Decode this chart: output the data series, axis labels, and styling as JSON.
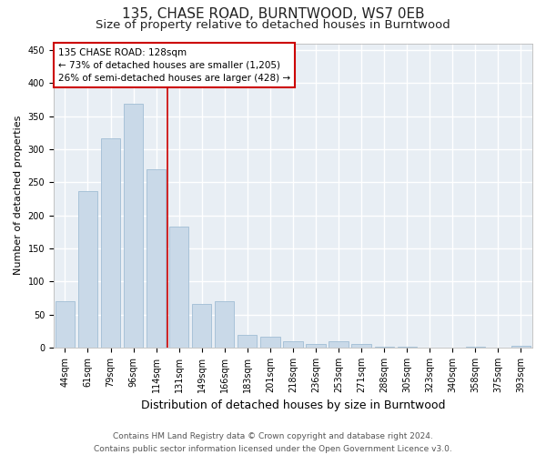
{
  "title": "135, CHASE ROAD, BURNTWOOD, WS7 0EB",
  "subtitle": "Size of property relative to detached houses in Burntwood",
  "xlabel": "Distribution of detached houses by size in Burntwood",
  "ylabel": "Number of detached properties",
  "categories": [
    "44sqm",
    "61sqm",
    "79sqm",
    "96sqm",
    "114sqm",
    "131sqm",
    "149sqm",
    "166sqm",
    "183sqm",
    "201sqm",
    "218sqm",
    "236sqm",
    "253sqm",
    "271sqm",
    "288sqm",
    "305sqm",
    "323sqm",
    "340sqm",
    "358sqm",
    "375sqm",
    "393sqm"
  ],
  "values": [
    70,
    236,
    316,
    369,
    270,
    183,
    66,
    70,
    20,
    17,
    10,
    6,
    10,
    5,
    1,
    1,
    0,
    0,
    1,
    0,
    3
  ],
  "bar_color": "#c9d9e8",
  "bar_edge_color": "#a0bdd4",
  "vline_color": "#cc0000",
  "vline_x_index": 4,
  "annotation_title": "135 CHASE ROAD: 128sqm",
  "annotation_line1": "← 73% of detached houses are smaller (1,205)",
  "annotation_line2": "26% of semi-detached houses are larger (428) →",
  "annotation_box_facecolor": "#ffffff",
  "annotation_box_edgecolor": "#cc0000",
  "ylim": [
    0,
    460
  ],
  "yticks": [
    0,
    50,
    100,
    150,
    200,
    250,
    300,
    350,
    400,
    450
  ],
  "bg_color": "#e8eef4",
  "fig_bg_color": "#ffffff",
  "grid_color": "#ffffff",
  "footer_line1": "Contains HM Land Registry data © Crown copyright and database right 2024.",
  "footer_line2": "Contains public sector information licensed under the Open Government Licence v3.0.",
  "title_fontsize": 11,
  "subtitle_fontsize": 9.5,
  "tick_fontsize": 7,
  "ylabel_fontsize": 8,
  "xlabel_fontsize": 9,
  "annot_fontsize": 7.5,
  "footer_fontsize": 6.5
}
